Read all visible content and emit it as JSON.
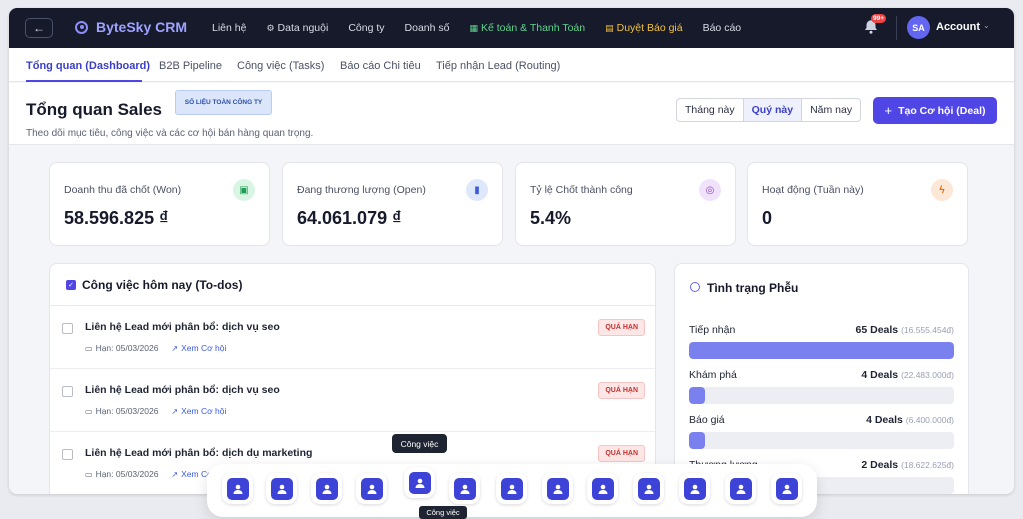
{
  "topbar": {
    "brand": "ByteSky CRM",
    "nav": [
      {
        "label": "Liên hệ",
        "icon": "",
        "tone": "default"
      },
      {
        "label": "Data nguội",
        "icon": "gear-icon",
        "tone": "default"
      },
      {
        "label": "Công ty",
        "icon": "",
        "tone": "default"
      },
      {
        "label": "Doanh số",
        "icon": "",
        "tone": "default"
      },
      {
        "label": "Kế toán & Thanh Toán",
        "icon": "calculator-icon",
        "tone": "green"
      },
      {
        "label": "Duyệt Báo giá",
        "icon": "document-icon",
        "tone": "yellow"
      },
      {
        "label": "Báo cáo",
        "icon": "",
        "tone": "default"
      }
    ],
    "notifications": "99+",
    "avatar_initials": "SA",
    "account_label": "Account"
  },
  "tabs": [
    "Tổng quan (Dashboard)",
    "B2B Pipeline",
    "Công việc (Tasks)",
    "Báo cáo Chi tiêu",
    "Tiếp nhận Lead (Routing)"
  ],
  "header": {
    "title": "Tổng quan Sales",
    "badge": "SỐ LIỆU TOÀN CÔNG TY",
    "subtitle": "Theo dõi mục tiêu, công việc và các cơ hội bán hàng quan trọng.",
    "periods": [
      "Tháng này",
      "Quý này",
      "Năm nay"
    ],
    "active_period": "Quý này",
    "create_button": "Tạo Cơ hội (Deal)"
  },
  "kpis": [
    {
      "label": "Doanh thu đã chốt (Won)",
      "value": "58.596.825 ₫",
      "icon": "cash-icon",
      "color": "#1f9d55",
      "bg": "#d9f5e4"
    },
    {
      "label": "Đang thương lượng (Open)",
      "value": "64.061.079 ₫",
      "icon": "bar-chart-icon",
      "color": "#3b5bdb",
      "bg": "#dfe7fb"
    },
    {
      "label": "Tỷ lệ Chốt thành công",
      "value": "5.4%",
      "icon": "target-icon",
      "color": "#8b3fd1",
      "bg": "#f0e2fb"
    },
    {
      "label": "Hoạt động (Tuần này)",
      "value": "0",
      "icon": "lightning-icon",
      "color": "#ea6a12",
      "bg": "#fde7d6"
    }
  ],
  "tasks": {
    "title": "Công việc hôm nay (To-dos)",
    "items": [
      {
        "title": "Liên hệ Lead mới phân bổ: dịch vụ seo",
        "due": "Hạn: 05/03/2026",
        "link": "Xem Cơ hội",
        "status": "QUÁ HẠN"
      },
      {
        "title": "Liên hệ Lead mới phân bổ: dịch vụ seo",
        "due": "Hạn: 05/03/2026",
        "link": "Xem Cơ hội",
        "status": "QUÁ HẠN"
      },
      {
        "title": "Liên hệ Lead mới phân bổ: dịch dụ marketing",
        "due": "Hạn: 05/03/2026",
        "link": "Xem Cơ hội",
        "status": "QUÁ HẠN"
      }
    ]
  },
  "funnel": {
    "title": "Tình trạng Phễu",
    "stages": [
      {
        "name": "Tiếp nhận",
        "deals": "65 Deals",
        "amount": "(16.555.454đ)",
        "fill": 1.0
      },
      {
        "name": "Khám phá",
        "deals": "4 Deals",
        "amount": "(22.483.000đ)",
        "fill": 0.06
      },
      {
        "name": "Báo giá",
        "deals": "4 Deals",
        "amount": "(6.400.000đ)",
        "fill": 0.06
      },
      {
        "name": "Thương lượng",
        "deals": "2 Deals",
        "amount": "(18.622.625đ)",
        "fill": 0.03
      }
    ]
  },
  "dock": {
    "tooltip": "Công việc",
    "tooltip_small": "Công việc",
    "items": [
      "user-icon",
      "sliders-icon",
      "users-icon",
      "user-circle-icon",
      "calendar-check-icon",
      "user-star-icon",
      "id-card-icon",
      "line-chart-icon",
      "receipt-icon",
      "chat-icon",
      "team-icon",
      "trend-up-icon",
      "user-database-icon"
    ]
  }
}
